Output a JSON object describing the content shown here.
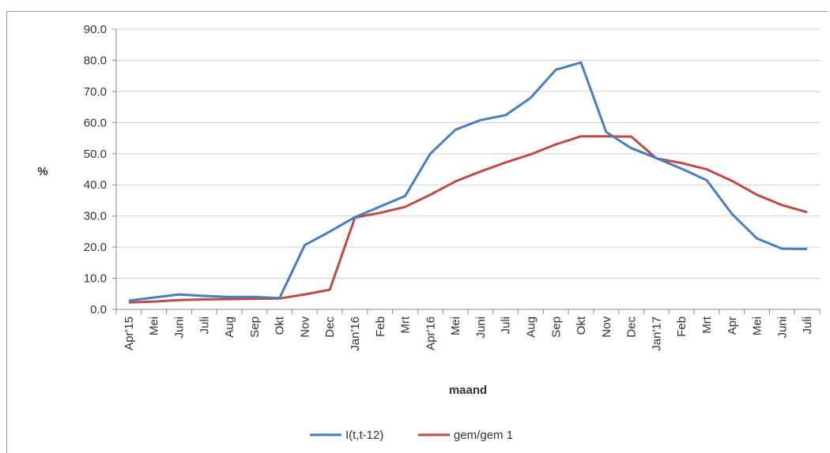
{
  "chart_data": {
    "type": "line",
    "title": "",
    "xlabel": "maand",
    "ylabel": "%",
    "ylim": [
      0,
      90
    ],
    "yticks": [
      "0.0",
      "10.0",
      "20.0",
      "30.0",
      "40.0",
      "50.0",
      "60.0",
      "70.0",
      "80.0",
      "90.0"
    ],
    "grid": "horizontal",
    "legend_position": "bottom",
    "categories": [
      "Apr'15",
      "Mei",
      "Juni",
      "Juli",
      "Aug",
      "Sep",
      "Okt",
      "Nov",
      "Dec",
      "Jan'16",
      "Feb",
      "Mrt",
      "Apr'16",
      "Mei",
      "Juni",
      "Juli",
      "Aug",
      "Sep",
      "Okt",
      "Nov",
      "Dec",
      "Jan'17",
      "Feb",
      "Mrt",
      "Apr",
      "Mei",
      "Juni",
      "Juli"
    ],
    "series": [
      {
        "name": "I(t,t-12)",
        "color": "#4a7ebb",
        "values": [
          2.8,
          3.8,
          4.8,
          4.3,
          4.0,
          4.0,
          3.6,
          20.6,
          25.0,
          29.6,
          33.0,
          36.4,
          50.0,
          57.7,
          60.8,
          62.4,
          68.0,
          77.0,
          79.3,
          57.0,
          51.8,
          48.6,
          45.2,
          41.5,
          30.7,
          22.8,
          19.5,
          19.4
        ]
      },
      {
        "name": "gem/gem 1",
        "color": "#be4b48",
        "values": [
          2.2,
          2.5,
          3.0,
          3.2,
          3.3,
          3.4,
          3.5,
          4.8,
          6.3,
          29.5,
          31.0,
          32.9,
          36.8,
          41.1,
          44.3,
          47.2,
          49.8,
          53.0,
          55.6,
          55.6,
          55.5,
          48.5,
          47.0,
          45.0,
          41.3,
          36.8,
          33.5,
          31.2
        ]
      }
    ]
  }
}
